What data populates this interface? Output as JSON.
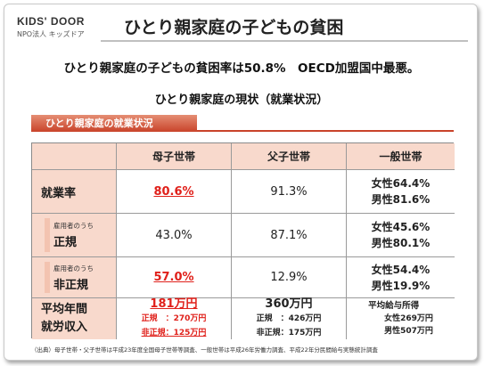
{
  "logo": {
    "line1": "KIDS' DOOR",
    "line2": "NPO法人 キッズドア"
  },
  "title": "ひとり親家庭の子どもの貧困",
  "headline": "ひとり親家庭の子どもの貧困率は50.8%　OECD加盟国中最悪。",
  "subhead": "ひとり親家庭の現状（就業状況）",
  "section_label": "ひとり親家庭の就業状況",
  "table": {
    "columns": [
      "母子世帯",
      "父子世帯",
      "一般世帯"
    ],
    "employment_rate": {
      "label": "就業率",
      "mother": "80.6%",
      "father": "91.3%",
      "general": [
        "女性64.4%",
        "男性81.6%"
      ]
    },
    "regular": {
      "label_small": "雇用者のうち",
      "label": "正規",
      "mother": "43.0%",
      "father": "87.1%",
      "general": [
        "女性45.6%",
        "男性80.1%"
      ]
    },
    "non_regular": {
      "label_small": "雇用者のうち",
      "label": "非正規",
      "mother": "57.0%",
      "father": "12.9%",
      "general": [
        "女性54.4%",
        "男性19.9%"
      ]
    },
    "income": {
      "label_line1": "平均年間",
      "label_line2": "就労収入",
      "mother_total": "181万円",
      "mother_regular": "正規　：270万円",
      "mother_nonregular": "非正規：125万円",
      "father_total": "360万円",
      "father_regular": "正規　：426万円",
      "father_nonregular": "非正規：175万円",
      "general_title": "平均給与所得",
      "general_female": "女性269万円",
      "general_male": "男性507万円"
    }
  },
  "footnote": "（出典）母子世帯・父子世帯は平成23年度全国母子世帯等調査、一般世帯は平成26年労働力調査、平成22年分民間給与実態統計調査",
  "colors": {
    "accent_red": "#e0201a",
    "header_bg": "#f8d9cc",
    "tab": "#c9432a"
  }
}
